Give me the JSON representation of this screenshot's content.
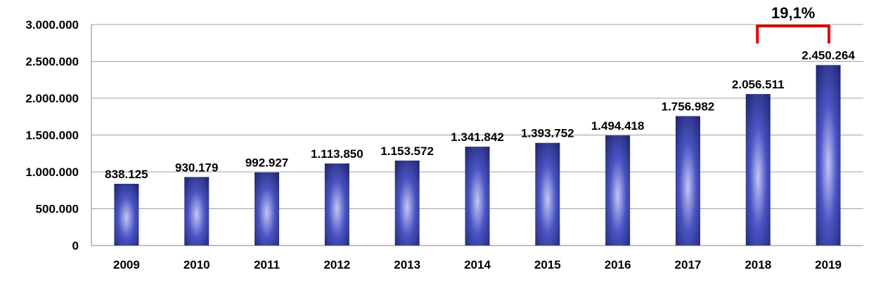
{
  "chart_data": {
    "type": "bar",
    "categories": [
      "2009",
      "2010",
      "2011",
      "2012",
      "2013",
      "2014",
      "2015",
      "2016",
      "2017",
      "2018",
      "2019"
    ],
    "values": [
      838125,
      930179,
      992927,
      1113850,
      1153572,
      1341842,
      1393752,
      1494418,
      1756982,
      2056511,
      2450264
    ],
    "value_labels": [
      "838.125",
      "930.179",
      "992.927",
      "1.113.850",
      "1.153.572",
      "1.341.842",
      "1.393.752",
      "1.494.418",
      "1.756.982",
      "2.056.511",
      "2.450.264"
    ],
    "yticks": [
      0,
      500000,
      1000000,
      1500000,
      2000000,
      2500000,
      3000000
    ],
    "ytick_labels": [
      "0",
      "500.000",
      "1.000.000",
      "1.500.000",
      "2.000.000",
      "2.500.000",
      "3.000.000"
    ],
    "ylim": [
      0,
      3000000
    ],
    "grid": true,
    "title": "",
    "xlabel": "",
    "ylabel": "",
    "annotation": {
      "text": "19,1%",
      "from_category": "2018",
      "to_category": "2019",
      "color": "#e00000"
    },
    "colors": {
      "bar_dark": "#232a6e",
      "bar_mid": "#3a44b8",
      "bar_light": "#b8bcf0"
    }
  }
}
